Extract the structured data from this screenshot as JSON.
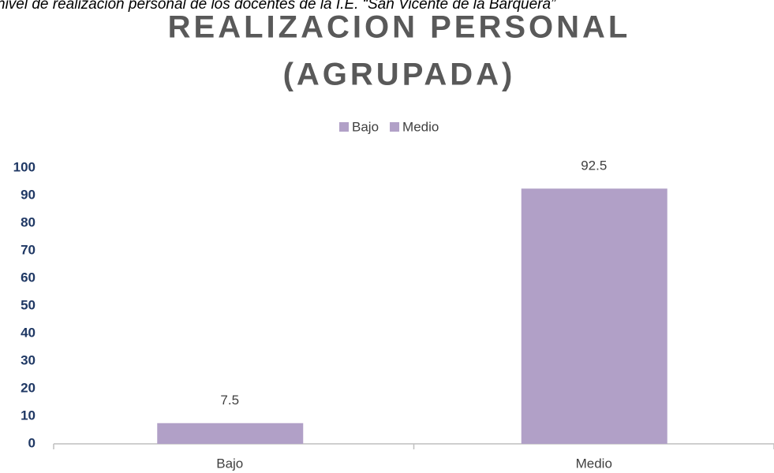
{
  "chart_data": {
    "type": "bar",
    "caption": "nivel de realización personal de los docentes de la I.E. “San Vicente de la Barquera”",
    "title": [
      "REALIZACION PERSONAL",
      "(AGRUPADA)"
    ],
    "categories": [
      "Bajo",
      "Medio"
    ],
    "series": [
      {
        "name": "Bajo",
        "color": "#b1a0c7",
        "values": [
          7.5,
          null
        ]
      },
      {
        "name": "Medio",
        "color": "#b1a0c7",
        "values": [
          null,
          92.5
        ]
      }
    ],
    "ylim": [
      0,
      100
    ],
    "yticks": [
      0,
      10,
      20,
      30,
      40,
      50,
      60,
      70,
      80,
      90,
      100
    ],
    "grid": false,
    "legend": "top"
  }
}
